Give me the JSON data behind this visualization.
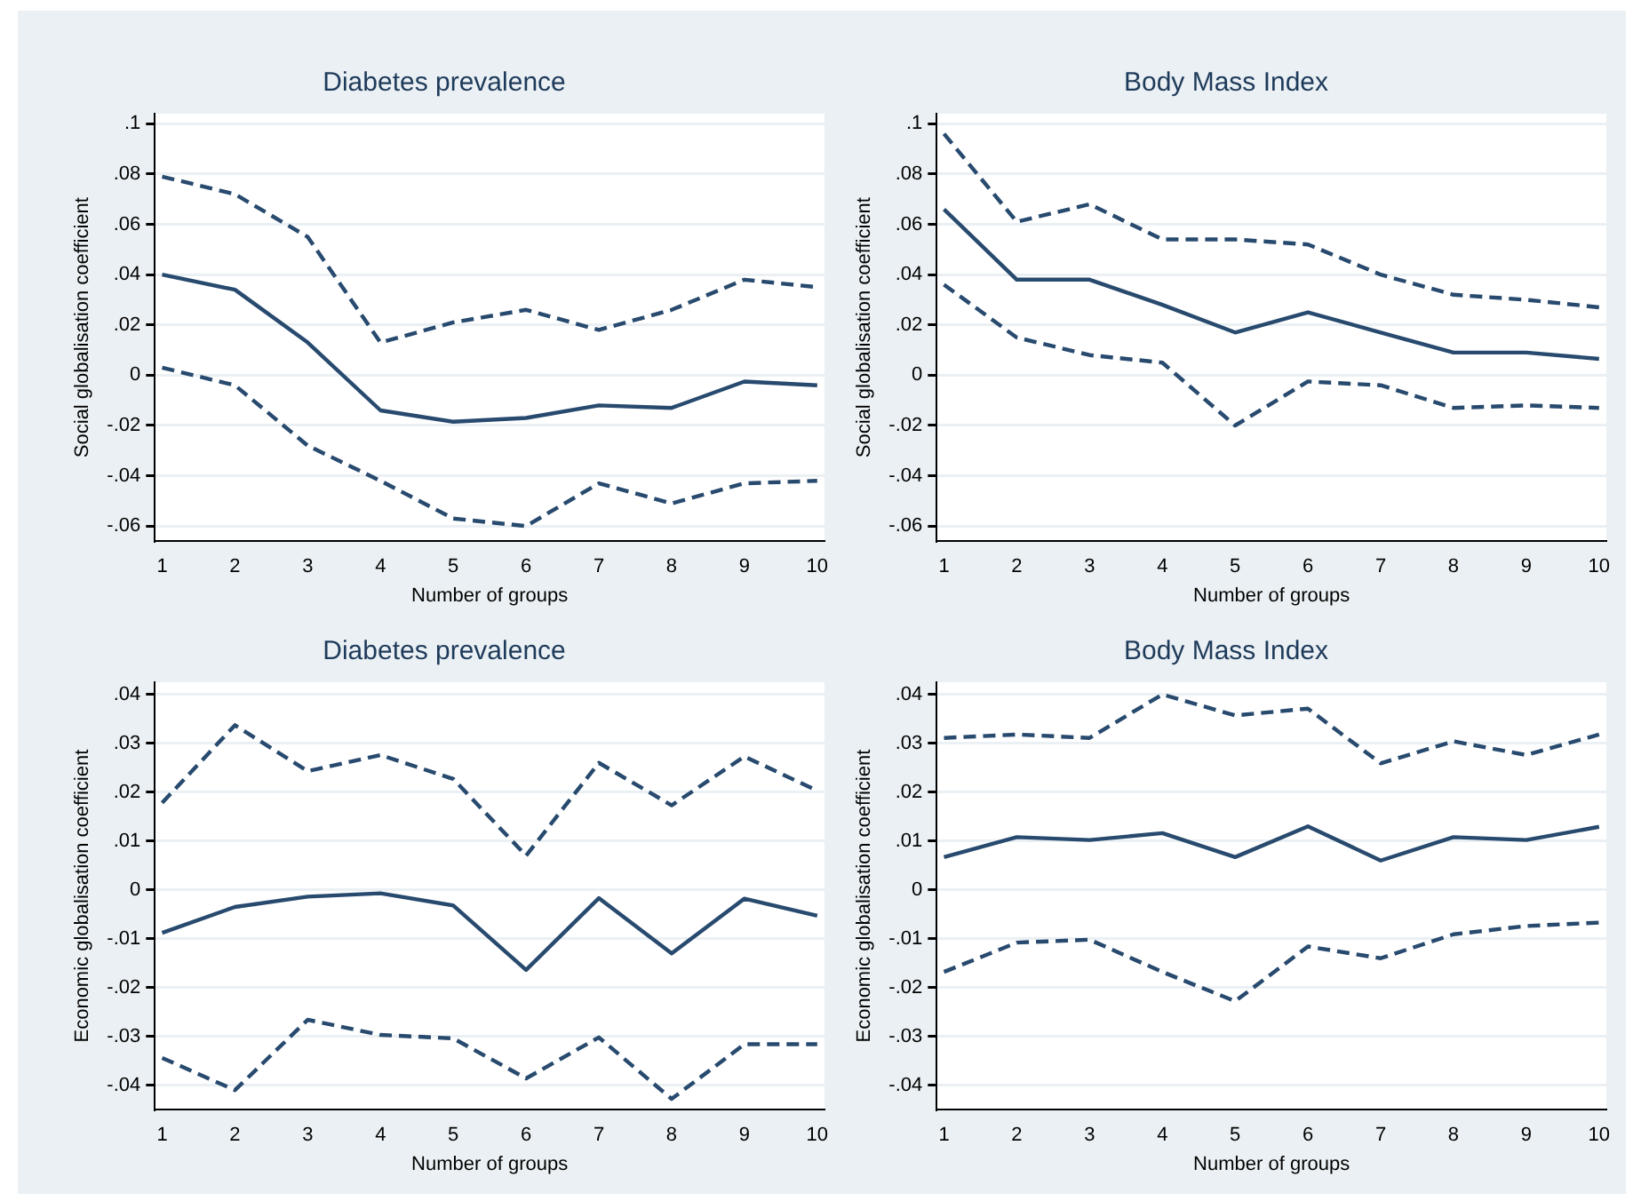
{
  "chart_data": [
    {
      "type": "line",
      "title": "Diabetes prevalence",
      "xlabel": "Number of groups",
      "ylabel": "Social globalisation coefficient",
      "x": [
        1,
        2,
        3,
        4,
        5,
        6,
        7,
        8,
        9,
        10
      ],
      "xlim": [
        0.9,
        10.1
      ],
      "xticks": [
        1,
        2,
        3,
        4,
        5,
        6,
        7,
        8,
        9,
        10
      ],
      "ylim": [
        -0.066,
        0.104
      ],
      "yticks": [
        {
          "value": -0.06,
          "label": "-.06"
        },
        {
          "value": -0.04,
          "label": "-.04"
        },
        {
          "value": -0.02,
          "label": "-.02"
        },
        {
          "value": 0,
          "label": "0"
        },
        {
          "value": 0.02,
          "label": ".02"
        },
        {
          "value": 0.04,
          "label": ".04"
        },
        {
          "value": 0.06,
          "label": ".06"
        },
        {
          "value": 0.08,
          "label": ".08"
        },
        {
          "value": 0.1,
          "label": ".1"
        }
      ],
      "grid": "y",
      "legend": false,
      "marker": "none",
      "series": [
        {
          "color": "#284a6e",
          "line_style": "solid",
          "values": [
            0.04,
            0.034,
            0.013,
            -0.014,
            -0.0185,
            -0.017,
            -0.012,
            -0.013,
            -0.0025,
            -0.004
          ]
        },
        {
          "color": "#284a6e",
          "line_style": "dashed",
          "values": [
            0.079,
            0.072,
            0.055,
            0.013,
            0.021,
            0.026,
            0.018,
            0.026,
            0.038,
            0.035
          ]
        },
        {
          "color": "#284a6e",
          "line_style": "dashed",
          "values": [
            0.003,
            -0.004,
            -0.028,
            -0.042,
            -0.057,
            -0.06,
            -0.043,
            -0.051,
            -0.043,
            -0.042
          ]
        }
      ]
    },
    {
      "type": "line",
      "title": "Body Mass Index",
      "xlabel": "Number of groups",
      "ylabel": "Social globalisation coefficient",
      "x": [
        1,
        2,
        3,
        4,
        5,
        6,
        7,
        8,
        9,
        10
      ],
      "xlim": [
        0.9,
        10.1
      ],
      "xticks": [
        1,
        2,
        3,
        4,
        5,
        6,
        7,
        8,
        9,
        10
      ],
      "ylim": [
        -0.066,
        0.104
      ],
      "yticks": [
        {
          "value": -0.06,
          "label": "-.06"
        },
        {
          "value": -0.04,
          "label": "-.04"
        },
        {
          "value": -0.02,
          "label": "-.02"
        },
        {
          "value": 0,
          "label": "0"
        },
        {
          "value": 0.02,
          "label": ".02"
        },
        {
          "value": 0.04,
          "label": ".04"
        },
        {
          "value": 0.06,
          "label": ".06"
        },
        {
          "value": 0.08,
          "label": ".08"
        },
        {
          "value": 0.1,
          "label": ".1"
        }
      ],
      "grid": "y",
      "legend": false,
      "marker": "none",
      "series": [
        {
          "color": "#284a6e",
          "line_style": "solid",
          "values": [
            0.066,
            0.038,
            0.038,
            0.028,
            0.017,
            0.025,
            0.017,
            0.009,
            0.009,
            0.0065
          ]
        },
        {
          "color": "#284a6e",
          "line_style": "dashed",
          "values": [
            0.096,
            0.061,
            0.068,
            0.054,
            0.054,
            0.052,
            0.04,
            0.032,
            0.03,
            0.027
          ]
        },
        {
          "color": "#284a6e",
          "line_style": "dashed",
          "values": [
            0.036,
            0.015,
            0.008,
            0.005,
            -0.02,
            -0.0025,
            -0.004,
            -0.013,
            -0.012,
            -0.013
          ]
        }
      ]
    },
    {
      "type": "line",
      "title": "Diabetes prevalence",
      "xlabel": "Number of groups",
      "ylabel": "Economic globalisation coefficient",
      "x": [
        1,
        2,
        3,
        4,
        5,
        6,
        7,
        8,
        9,
        10
      ],
      "xlim": [
        0.9,
        10.1
      ],
      "xticks": [
        1,
        2,
        3,
        4,
        5,
        6,
        7,
        8,
        9,
        10
      ],
      "ylim": [
        -0.045,
        0.0425
      ],
      "yticks": [
        {
          "value": -0.04,
          "label": "-.04"
        },
        {
          "value": -0.03,
          "label": "-.03"
        },
        {
          "value": -0.02,
          "label": "-.02"
        },
        {
          "value": -0.01,
          "label": "-.01"
        },
        {
          "value": 0,
          "label": "0"
        },
        {
          "value": 0.01,
          "label": ".01"
        },
        {
          "value": 0.02,
          "label": ".02"
        },
        {
          "value": 0.03,
          "label": ".03"
        },
        {
          "value": 0.04,
          "label": ".04"
        }
      ],
      "grid": "y",
      "legend": false,
      "marker": "none",
      "series": [
        {
          "color": "#284a6e",
          "line_style": "solid",
          "values": [
            -0.0088,
            -0.0035,
            -0.0014,
            -0.0007,
            -0.0032,
            -0.0164,
            -0.0017,
            -0.013,
            -0.0018,
            -0.0053
          ]
        },
        {
          "color": "#284a6e",
          "line_style": "dashed",
          "values": [
            0.0178,
            0.0337,
            0.0243,
            0.0276,
            0.0227,
            0.007,
            0.026,
            0.0173,
            0.0273,
            0.0203
          ]
        },
        {
          "color": "#284a6e",
          "line_style": "dashed",
          "values": [
            -0.0344,
            -0.041,
            -0.0266,
            -0.0297,
            -0.0304,
            -0.0386,
            -0.0302,
            -0.0428,
            -0.0316,
            -0.0316
          ]
        }
      ]
    },
    {
      "type": "line",
      "title": "Body Mass Index",
      "xlabel": "Number of groups",
      "ylabel": "Economic globalisation coefficient",
      "x": [
        1,
        2,
        3,
        4,
        5,
        6,
        7,
        8,
        9,
        10
      ],
      "xlim": [
        0.9,
        10.1
      ],
      "xticks": [
        1,
        2,
        3,
        4,
        5,
        6,
        7,
        8,
        9,
        10
      ],
      "ylim": [
        -0.045,
        0.0425
      ],
      "yticks": [
        {
          "value": -0.04,
          "label": "-.04"
        },
        {
          "value": -0.03,
          "label": "-.03"
        },
        {
          "value": -0.02,
          "label": "-.02"
        },
        {
          "value": -0.01,
          "label": "-.01"
        },
        {
          "value": 0,
          "label": "0"
        },
        {
          "value": 0.01,
          "label": ".01"
        },
        {
          "value": 0.02,
          "label": ".02"
        },
        {
          "value": 0.03,
          "label": ".03"
        },
        {
          "value": 0.04,
          "label": ".04"
        }
      ],
      "grid": "y",
      "legend": false,
      "marker": "none",
      "series": [
        {
          "color": "#284a6e",
          "line_style": "solid",
          "values": [
            0.0067,
            0.0108,
            0.0102,
            0.0116,
            0.0067,
            0.013,
            0.006,
            0.0108,
            0.0102,
            0.0129
          ]
        },
        {
          "color": "#284a6e",
          "line_style": "dashed",
          "values": [
            0.0311,
            0.0318,
            0.0311,
            0.04,
            0.0357,
            0.0371,
            0.0259,
            0.0304,
            0.0276,
            0.0318
          ]
        },
        {
          "color": "#284a6e",
          "line_style": "dashed",
          "values": [
            -0.0168,
            -0.0108,
            -0.0102,
            -0.0168,
            -0.0228,
            -0.0116,
            -0.014,
            -0.0091,
            -0.0074,
            -0.0067
          ]
        }
      ]
    }
  ]
}
